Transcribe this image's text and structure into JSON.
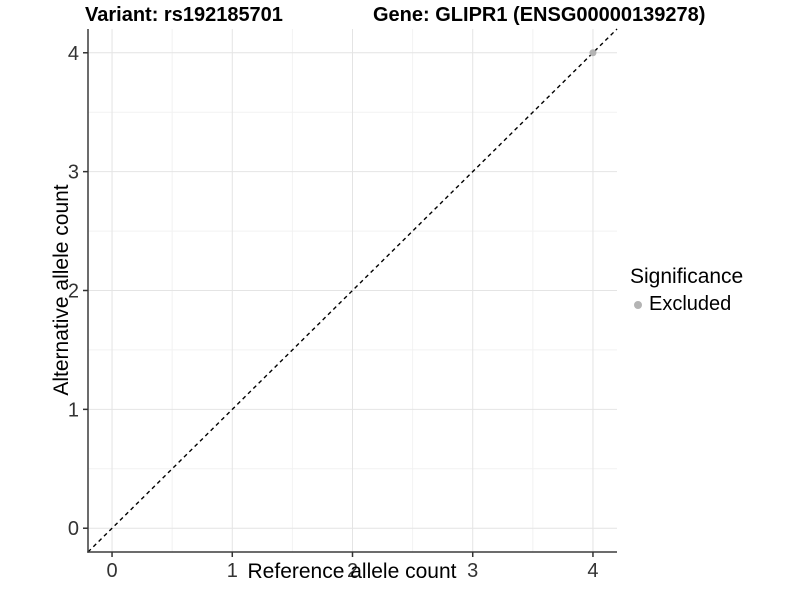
{
  "title": {
    "variant": "Variant: rs192185701",
    "gene": "Gene: GLIPR1 (ENSG00000139278)"
  },
  "chart_data": {
    "type": "scatter",
    "xlabel": "Reference allele count",
    "ylabel": "Alternative allele count",
    "xlim": [
      -0.2,
      4.2
    ],
    "ylim": [
      -0.2,
      4.2
    ],
    "xticks": [
      0,
      1,
      2,
      3,
      4
    ],
    "yticks": [
      0,
      1,
      2,
      3,
      4
    ],
    "xticks_minor": [
      0.5,
      1.5,
      2.5,
      3.5
    ],
    "yticks_minor": [
      0.5,
      1.5,
      2.5,
      3.5
    ],
    "grid": true,
    "identity_line": {
      "style": "dashed",
      "color": "#000000",
      "from": [
        -0.2,
        -0.2
      ],
      "to": [
        4.2,
        4.2
      ]
    },
    "series": [
      {
        "name": "Excluded",
        "color": "#b4b4b4",
        "points": [
          [
            4,
            4
          ]
        ]
      }
    ],
    "legend": {
      "title": "Significance",
      "position": "right",
      "items": [
        {
          "label": "Excluded",
          "color": "#b4b4b4"
        }
      ]
    }
  },
  "colors": {
    "background": "#ffffff",
    "axis_line": "#3c3c3c",
    "tick_mark": "#333333",
    "tick_label": "#333333",
    "grid_major": "#e4e4e4",
    "grid_minor": "#f2f2f2",
    "point": "#b4b4b4",
    "dashed_line": "#000000"
  }
}
